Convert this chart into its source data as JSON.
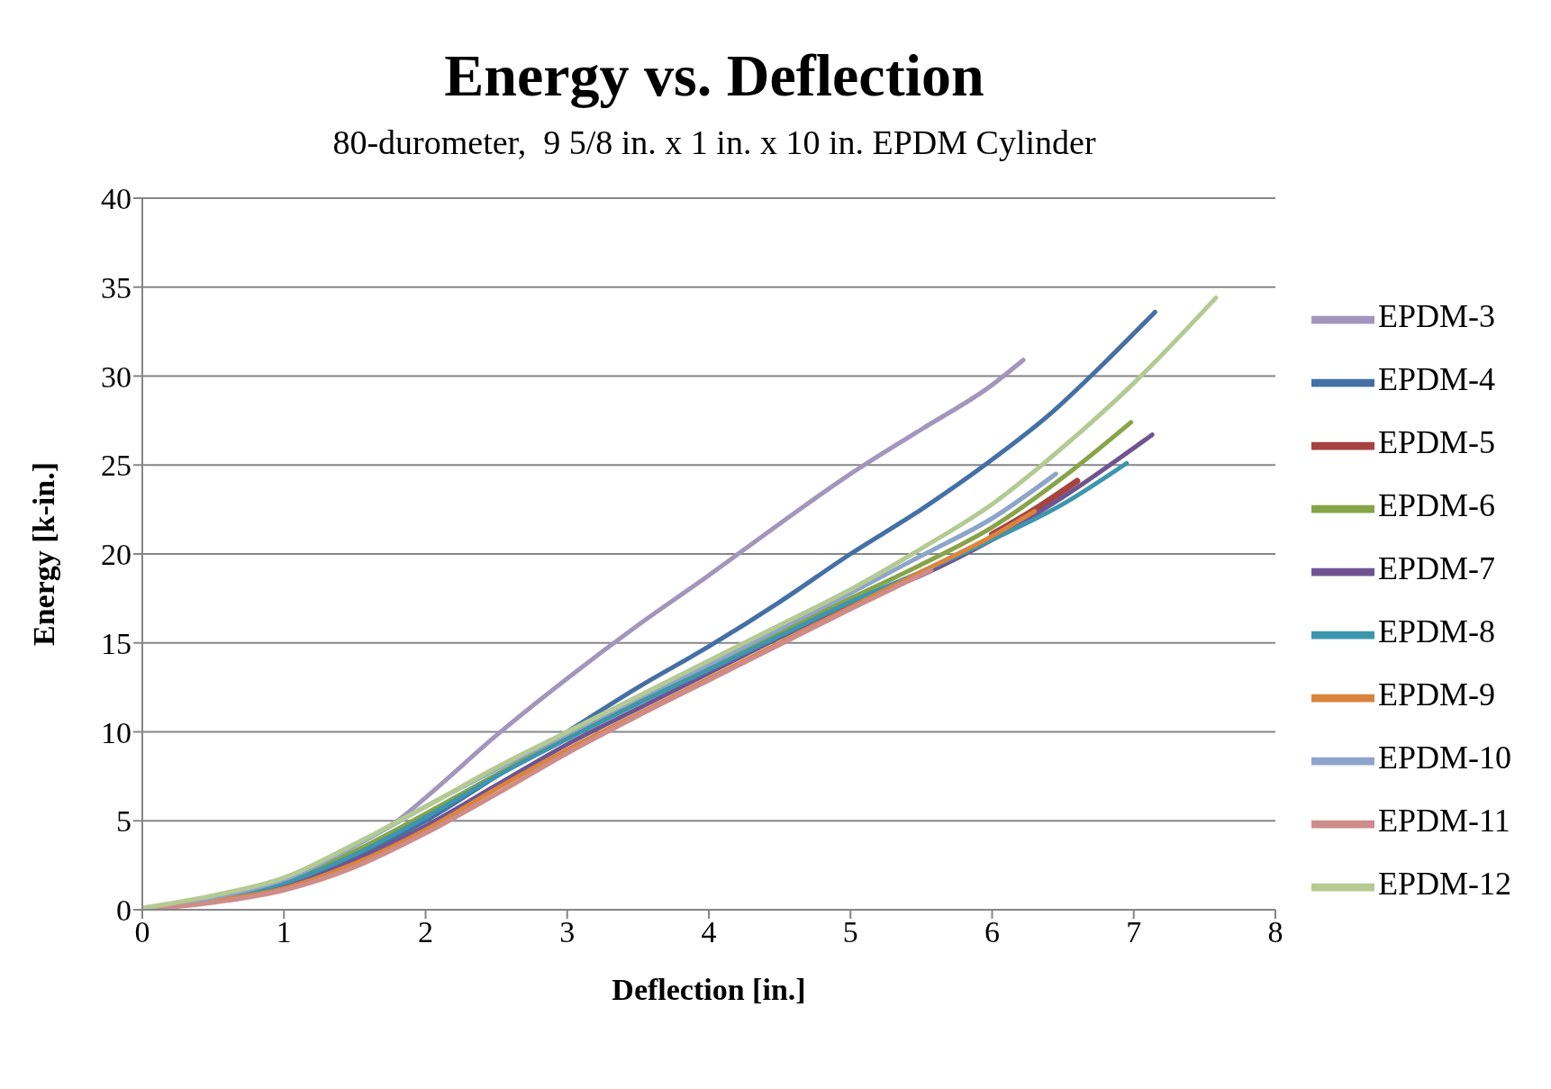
{
  "chart_data": {
    "type": "line",
    "title": "Energy vs. Deflection",
    "subtitle": "80-durometer,  9 5/8 in. x 1 in. x 10 in. EPDM Cylinder",
    "xlabel": "Deflection [in.]",
    "ylabel": "Energy [k-in.]",
    "xlim": [
      0,
      8
    ],
    "xticks": [
      0,
      1,
      2,
      3,
      4,
      5,
      6,
      7,
      8
    ],
    "ylim": [
      0,
      40
    ],
    "yticks": [
      0,
      5,
      10,
      15,
      20,
      25,
      30,
      35,
      40
    ],
    "grid": "y",
    "legend": "right",
    "marker": "none",
    "line_style": "solid",
    "series": [
      {
        "name": "EPDM-3",
        "color": "#a396bd",
        "x": [
          0,
          0.5,
          1,
          1.5,
          1.8,
          2,
          2.5,
          3,
          3.5,
          4,
          4.5,
          5,
          5.5,
          6,
          6.22
        ],
        "values": [
          0,
          0.7,
          1.7,
          3.6,
          5,
          6.3,
          9.8,
          13,
          16,
          18.8,
          21.7,
          24.5,
          27,
          29.5,
          30.9
        ]
      },
      {
        "name": "EPDM-4",
        "color": "#4470a5",
        "x": [
          0,
          0.5,
          1,
          1.5,
          2,
          2.5,
          3,
          3.5,
          4,
          4.5,
          5,
          5.5,
          6,
          6.4,
          6.8,
          7.15
        ],
        "values": [
          0,
          0.5,
          1.5,
          3,
          5,
          7.5,
          10,
          12.5,
          14.8,
          17.3,
          20,
          22.5,
          25.3,
          27.8,
          30.8,
          33.6
        ]
      },
      {
        "name": "EPDM-5",
        "color": "#a64340",
        "x": [
          6,
          6.3,
          6.6
        ],
        "values": [
          21.1,
          22.5,
          24.1
        ]
      },
      {
        "name": "EPDM-6",
        "color": "#87a448",
        "x": [
          0,
          0.5,
          1,
          1.5,
          2,
          2.5,
          3,
          3.5,
          4,
          4.5,
          5,
          5.5,
          6,
          6.5,
          6.98
        ],
        "values": [
          0,
          0.6,
          1.6,
          3.3,
          5.4,
          7.6,
          9.7,
          11.7,
          13.7,
          15.6,
          17.5,
          19.4,
          21.5,
          24.3,
          27.4
        ]
      },
      {
        "name": "EPDM-7",
        "color": "#6f5491",
        "x": [
          0,
          0.5,
          1,
          1.5,
          2,
          2.5,
          3,
          3.5,
          4,
          4.5,
          5,
          5.5,
          6,
          6.5,
          7.13
        ],
        "values": [
          0,
          0.5,
          1.3,
          2.8,
          4.7,
          7,
          9.3,
          11.3,
          13.3,
          15.3,
          17.2,
          18.8,
          20.8,
          23.2,
          26.7
        ]
      },
      {
        "name": "EPDM-8",
        "color": "#3d96ae",
        "x": [
          0,
          0.5,
          1,
          1.5,
          2,
          2.5,
          3,
          3.5,
          4,
          4.5,
          5,
          5.5,
          6,
          6.5,
          6.95
        ],
        "values": [
          0,
          0.6,
          1.5,
          3.1,
          5.2,
          7.5,
          9.6,
          11.6,
          13.5,
          15.4,
          17.3,
          19,
          20.8,
          22.8,
          25.1
        ]
      },
      {
        "name": "EPDM-9",
        "color": "#db843d",
        "x": [
          0,
          0.5,
          1,
          1.5,
          2,
          2.5,
          3,
          3.5,
          4,
          4.5,
          5,
          5.5,
          6,
          6.3
        ],
        "values": [
          0,
          0.5,
          1.2,
          2.6,
          4.5,
          6.8,
          9,
          11,
          13,
          15,
          17,
          19,
          21,
          22.4
        ]
      },
      {
        "name": "EPDM-10",
        "color": "#8ea5cb",
        "x": [
          0,
          0.5,
          1,
          1.5,
          2,
          2.5,
          3,
          3.5,
          4,
          4.5,
          5,
          5.5,
          6,
          6.45
        ],
        "values": [
          0.1,
          0.7,
          1.7,
          3.6,
          5.8,
          7.9,
          9.9,
          11.9,
          13.8,
          15.8,
          17.8,
          19.9,
          22,
          24.5
        ]
      },
      {
        "name": "EPDM-11",
        "color": "#ce8c8b",
        "x": [
          0,
          0.5,
          1,
          1.5,
          2,
          2.5,
          3,
          3.5,
          4,
          4.5,
          5,
          5.57
        ],
        "values": [
          0,
          0.4,
          1.1,
          2.4,
          4.3,
          6.5,
          8.8,
          10.9,
          12.9,
          14.9,
          16.9,
          19.1
        ]
      },
      {
        "name": "EPDM-12",
        "color": "#b5ca92",
        "x": [
          0,
          0.5,
          1,
          1.5,
          2,
          2.5,
          3,
          3.5,
          4,
          4.5,
          5,
          5.5,
          6,
          6.5,
          7,
          7.58
        ],
        "values": [
          0.1,
          0.8,
          1.8,
          3.7,
          5.8,
          8,
          10,
          12,
          14,
          16,
          18,
          20.3,
          22.8,
          26,
          29.6,
          34.4
        ]
      }
    ]
  }
}
